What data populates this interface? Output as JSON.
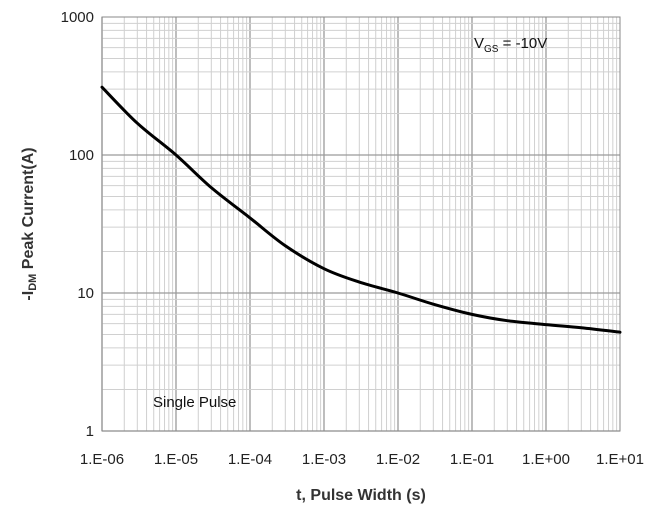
{
  "chart_data": {
    "type": "line",
    "xlabel": "t, Pulse Width (s)",
    "ylabel": "-IDM Peak Current(A)",
    "ylabel_parts": {
      "prefix": "-I",
      "subscript": "DM",
      "rest": " Peak Current(A)"
    },
    "xscale": "log",
    "yscale": "log",
    "xlim": [
      1e-06,
      10
    ],
    "ylim": [
      1,
      1000
    ],
    "grid": true,
    "x_tick_labels": [
      "1.E-06",
      "1.E-05",
      "1.E-04",
      "1.E-03",
      "1.E-02",
      "1.E-01",
      "1.E+00",
      "1.E+01"
    ],
    "y_tick_labels": [
      "1",
      "10",
      "100",
      "1000"
    ],
    "annotations": {
      "vgs": {
        "prefix": "V",
        "subscript": "GS",
        "rest": " = -10V"
      },
      "single_pulse": "Single Pulse"
    },
    "series": [
      {
        "x": [
          1e-06,
          3e-06,
          1e-05,
          3e-05,
          0.0001,
          0.0003,
          0.001,
          0.003,
          0.01,
          0.03,
          0.1,
          0.3,
          1,
          3,
          10
        ],
        "y": [
          310,
          170,
          100,
          58,
          35,
          22,
          15,
          12,
          10,
          8.3,
          7.0,
          6.3,
          5.9,
          5.6,
          5.2
        ]
      }
    ]
  }
}
